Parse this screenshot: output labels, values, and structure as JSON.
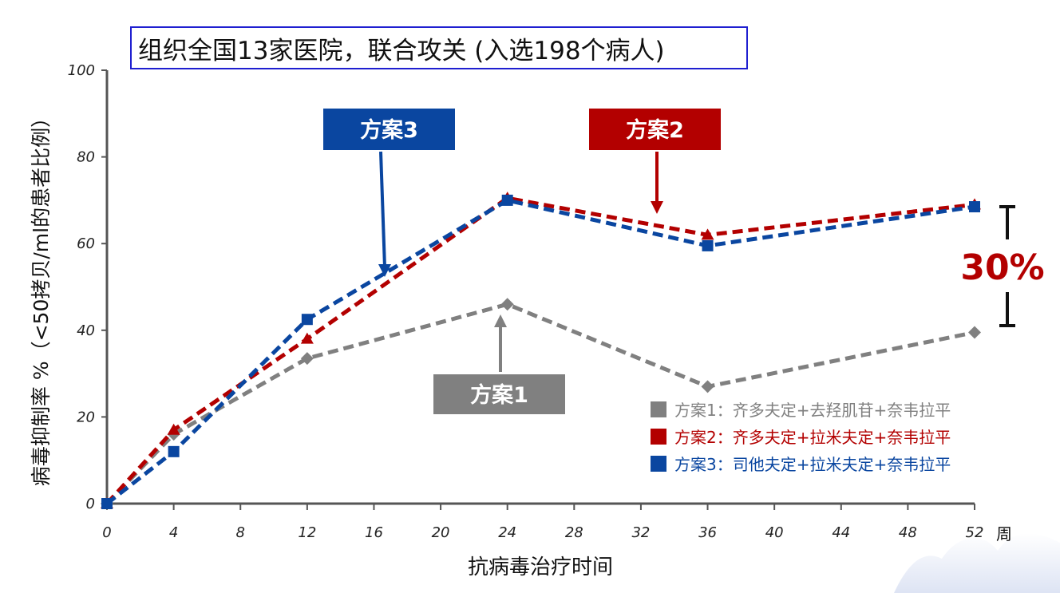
{
  "title": "组织全国13家医院，联合攻关 (入选198个病人)",
  "chart_data": {
    "type": "line",
    "xlabel": "抗病毒治疗时间",
    "x_unit_label": "周",
    "ylabel": "病毒抑制率 %（<50拷贝/ml的患者比例）",
    "xlim": [
      0,
      52
    ],
    "ylim": [
      0,
      100
    ],
    "x_ticks": [
      0,
      4,
      8,
      12,
      16,
      20,
      24,
      28,
      32,
      36,
      40,
      44,
      48,
      52
    ],
    "y_ticks": [
      0,
      20,
      40,
      60,
      80,
      100
    ],
    "series": [
      {
        "name": "方案1",
        "legend": "方案1：齐多夫定+去羟肌苷+奈韦拉平",
        "color": "#808080",
        "marker": "diamond",
        "x": [
          0,
          4,
          12,
          24,
          36,
          52
        ],
        "y": [
          0,
          16,
          33.5,
          46,
          27,
          39.5
        ]
      },
      {
        "name": "方案2",
        "legend": "方案2：齐多夫定+拉米夫定+奈韦拉平",
        "color": "#b30000",
        "marker": "triangle",
        "x": [
          0,
          4,
          12,
          24,
          36,
          52
        ],
        "y": [
          0,
          17,
          38,
          70.5,
          62,
          69
        ]
      },
      {
        "name": "方案3",
        "legend": "方案3：司他夫定+拉米夫定+奈韦拉平",
        "color": "#0a46a0",
        "marker": "square",
        "x": [
          0,
          4,
          12,
          24,
          36,
          52
        ],
        "y": [
          0,
          12,
          42.5,
          70,
          59.5,
          68.5
        ]
      }
    ],
    "callouts": [
      {
        "label": "方案1",
        "series": "方案1",
        "color": "#808080",
        "target_x": 24,
        "target_y": 46
      },
      {
        "label": "方案2",
        "series": "方案2",
        "color": "#b30000",
        "target_x": 33,
        "target_y": 66
      },
      {
        "label": "方案3",
        "series": "方案3",
        "color": "#0a46a0",
        "target_x": 16.5,
        "target_y": 53
      }
    ],
    "annotation": {
      "text": "30%",
      "color": "#b30000"
    }
  }
}
